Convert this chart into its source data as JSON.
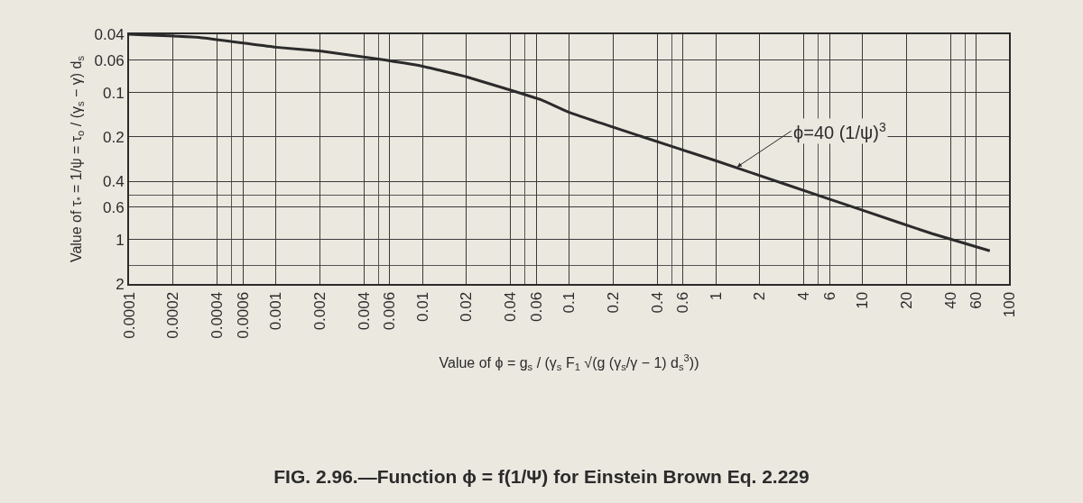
{
  "chart_data": {
    "type": "line",
    "title": "FIG. 2.96.—Function ϕ = f(1/Ψ) for Einstein Brown Eq. 2.229",
    "xlabel": "Value of ϕ = g$_{s}$ / (γ$_{s}$ F$_{1}$ √(g (γ$_{s}$/γ − 1) d$_{s}$$^{3}$))",
    "ylabel": "Value of τ$_{*}$ = 1/ψ = τ$_{o}$ / (γ$_{s}$ − γ) d$_{s}$",
    "x": [
      0.0001,
      0.0003,
      0.001,
      0.002,
      0.005,
      0.01,
      0.02,
      0.036,
      0.065,
      0.1,
      0.3,
      1,
      3,
      10,
      30,
      74
    ],
    "series": [
      {
        "color": "#2b2b2b",
        "values": [
          0.04,
          0.042,
          0.049,
          0.052,
          0.059,
          0.066,
          0.078,
          0.093,
          0.112,
          0.136,
          0.196,
          0.29,
          0.42,
          0.63,
          0.91,
          1.19
        ]
      }
    ],
    "annotations": [
      {
        "text": "ϕ=40 (1/ψ)$^{3}$",
        "x": 1.4,
        "y": 0.32
      }
    ],
    "log": "xy",
    "xlim": [
      0.0001,
      100
    ],
    "xticks": [
      0.0001,
      0.0002,
      0.0004,
      0.0006,
      0.001,
      0.002,
      0.004,
      0.006,
      0.01,
      0.02,
      0.04,
      0.06,
      0.1,
      0.2,
      0.4,
      0.6,
      1,
      2,
      4,
      6,
      10,
      20,
      40,
      60,
      100
    ],
    "ylim": [
      2,
      0.04
    ],
    "yticks": [
      0.04,
      0.06,
      0.1,
      0.2,
      0.4,
      0.6,
      1,
      2
    ],
    "grid": true,
    "marker": "none",
    "line_style": "solid"
  }
}
